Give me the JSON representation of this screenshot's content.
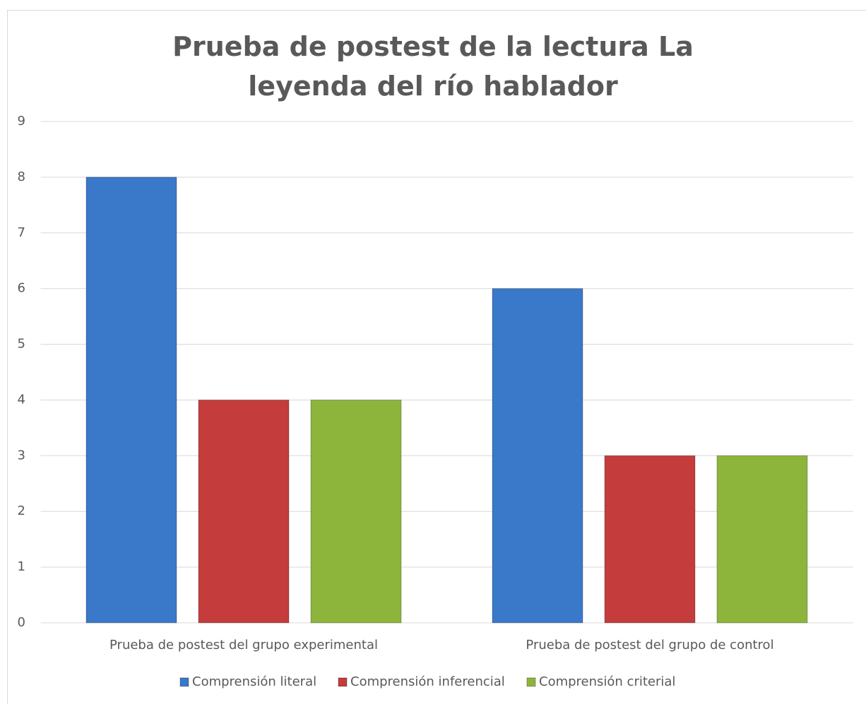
{
  "chart_data": {
    "type": "bar",
    "title": "Prueba de postest de la lectura La leyenda del río hablador",
    "categories": [
      "Prueba de postest del grupo experimental",
      "Prueba de postest del grupo de control"
    ],
    "series": [
      {
        "name": "Comprensión literal",
        "color": "#3a78c9",
        "values": [
          8,
          6
        ]
      },
      {
        "name": "Comprensión inferencial",
        "color": "#c43c3c",
        "values": [
          4,
          3
        ]
      },
      {
        "name": "Comprensión criterial",
        "color": "#8db53c",
        "values": [
          4,
          3
        ]
      }
    ],
    "ylim": [
      0,
      9
    ],
    "yticks": [
      0,
      1,
      2,
      3,
      4,
      5,
      6,
      7,
      8,
      9
    ],
    "grid": true,
    "legend": "bottom"
  }
}
